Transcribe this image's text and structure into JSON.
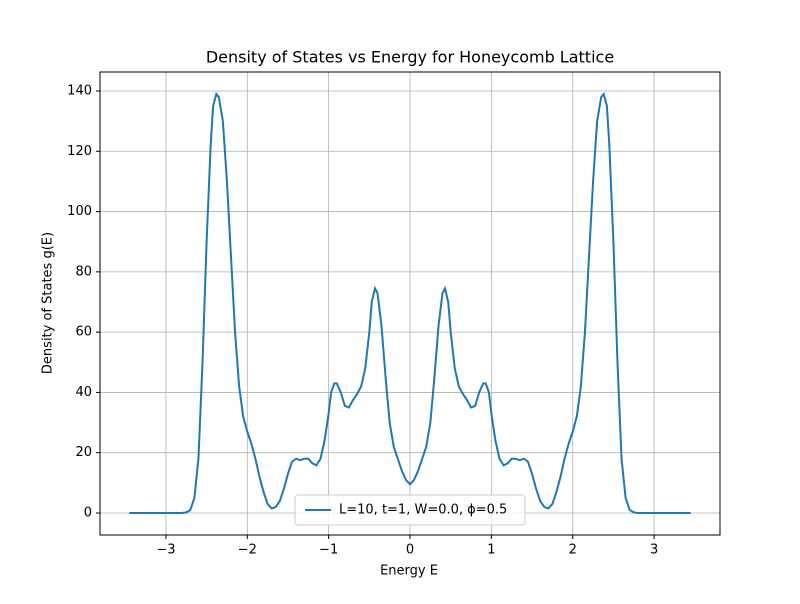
{
  "chart_data": {
    "type": "line",
    "title": "Density of States vs Energy for Honeycomb Lattice",
    "xlabel": "Energy E",
    "ylabel": "Density of States g(E)",
    "x": [
      -3.45,
      -3.0,
      -2.8,
      -2.75,
      -2.7,
      -2.65,
      -2.6,
      -2.55,
      -2.5,
      -2.45,
      -2.42,
      -2.38,
      -2.35,
      -2.3,
      -2.25,
      -2.2,
      -2.15,
      -2.1,
      -2.05,
      -2.0,
      -1.95,
      -1.9,
      -1.85,
      -1.8,
      -1.75,
      -1.7,
      -1.65,
      -1.6,
      -1.55,
      -1.5,
      -1.45,
      -1.4,
      -1.35,
      -1.3,
      -1.25,
      -1.2,
      -1.15,
      -1.1,
      -1.05,
      -1.0,
      -0.97,
      -0.93,
      -0.9,
      -0.85,
      -0.8,
      -0.75,
      -0.7,
      -0.65,
      -0.6,
      -0.55,
      -0.5,
      -0.47,
      -0.43,
      -0.4,
      -0.35,
      -0.3,
      -0.25,
      -0.2,
      -0.15,
      -0.1,
      -0.05,
      0,
      0.05,
      0.1,
      0.15,
      0.2,
      0.25,
      0.3,
      0.35,
      0.4,
      0.43,
      0.47,
      0.5,
      0.55,
      0.6,
      0.65,
      0.7,
      0.75,
      0.8,
      0.85,
      0.9,
      0.93,
      0.97,
      1.0,
      1.05,
      1.1,
      1.15,
      1.2,
      1.25,
      1.3,
      1.35,
      1.4,
      1.45,
      1.5,
      1.55,
      1.6,
      1.65,
      1.7,
      1.75,
      1.8,
      1.85,
      1.9,
      1.95,
      2.0,
      2.05,
      2.1,
      2.15,
      2.2,
      2.25,
      2.3,
      2.35,
      2.38,
      2.42,
      2.45,
      2.5,
      2.55,
      2.6,
      2.65,
      2.7,
      2.75,
      2.8,
      3.0,
      3.45
    ],
    "series": [
      {
        "name": "L=10, t=1, W=0.0, ϕ=0.5",
        "color": "#1f77b4",
        "values": [
          0,
          0,
          0,
          0.2,
          1,
          5,
          18,
          50,
          90,
          122,
          135,
          139,
          138,
          130,
          110,
          85,
          60,
          42,
          32,
          27,
          23,
          18,
          12,
          7,
          3,
          1.5,
          2,
          4,
          8,
          13,
          17,
          18,
          17.5,
          18,
          18,
          16.5,
          15.8,
          18,
          24,
          33,
          40,
          43,
          43,
          40,
          35.5,
          35,
          37.5,
          39.5,
          42,
          48,
          60,
          70,
          74.5,
          73,
          62,
          45,
          30,
          22,
          18,
          14,
          11,
          9.5,
          11,
          14,
          18,
          22,
          30,
          45,
          62,
          73,
          74.5,
          70,
          60,
          48,
          42,
          39.5,
          37.5,
          35,
          35.5,
          40,
          43,
          43,
          40,
          33,
          24,
          18,
          15.8,
          16.5,
          18,
          18,
          17.5,
          18,
          17,
          13,
          8,
          4,
          2,
          1.5,
          3,
          7,
          12,
          18,
          23,
          27,
          32,
          42,
          60,
          85,
          110,
          130,
          138,
          139,
          135,
          122,
          90,
          50,
          18,
          5,
          1,
          0.2,
          0,
          0,
          0
        ]
      }
    ],
    "xlim": [
      -3.81,
      3.81
    ],
    "ylim": [
      -7.3,
      146.3
    ],
    "xticks": [
      {
        "value": -3,
        "label": "−3"
      },
      {
        "value": -2,
        "label": "−2"
      },
      {
        "value": -1,
        "label": "−1"
      },
      0,
      1,
      2,
      3
    ],
    "yticks": [
      0,
      20,
      40,
      60,
      80,
      100,
      120,
      140
    ],
    "grid": true,
    "legend": "lower center"
  }
}
